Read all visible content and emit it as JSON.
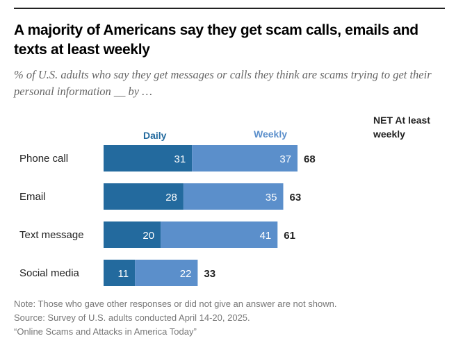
{
  "title": "A majority of Americans say they get scam calls, emails and texts at least weekly",
  "subtitle": "% of U.S. adults who say they get messages or calls they think are scams trying to get their personal information __ by …",
  "colors": {
    "daily": "#236a9e",
    "weekly": "#5b8fcb"
  },
  "chart_data": {
    "type": "bar",
    "stacked": true,
    "orientation": "horizontal",
    "categories": [
      "Phone call",
      "Email",
      "Text message",
      "Social media"
    ],
    "series": [
      {
        "name": "Daily",
        "values": [
          31,
          28,
          20,
          11
        ]
      },
      {
        "name": "Weekly",
        "values": [
          37,
          35,
          41,
          22
        ]
      }
    ],
    "net_label": "NET At least weekly",
    "net_values": [
      68,
      63,
      61,
      33
    ]
  },
  "notes": {
    "note": "Note: Those who gave other responses or did not give an answer are not shown.",
    "source": "Source: Survey of U.S. adults conducted April 14-20, 2025.",
    "report": "“Online Scams and Attacks in America Today”"
  }
}
